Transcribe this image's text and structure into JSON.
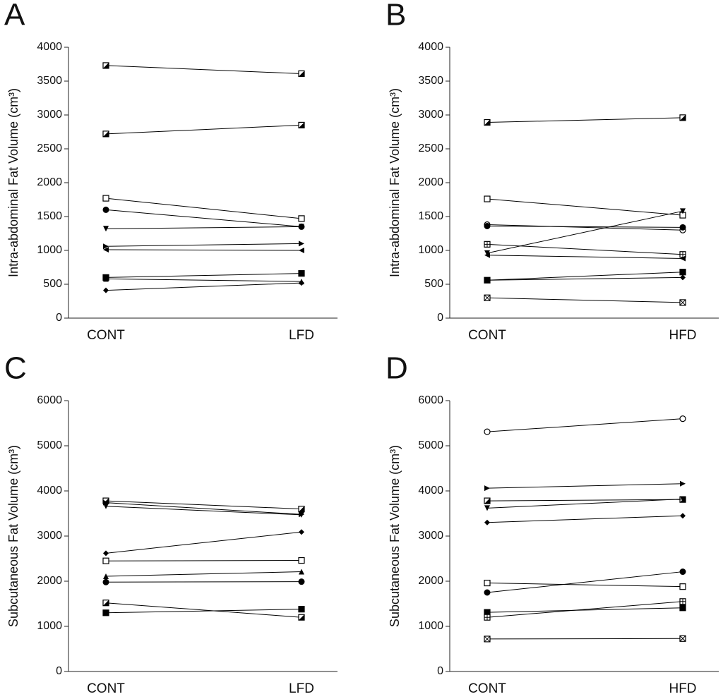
{
  "chart_data": [
    {
      "type": "line",
      "panel": "A",
      "y_label": "Intra-abdominal Fat Volume (cm³)",
      "categories": [
        "CONT",
        "LFD"
      ],
      "ylim": [
        0,
        4000
      ],
      "yticks": [
        0,
        500,
        1000,
        1500,
        2000,
        2500,
        3000,
        3500,
        4000
      ],
      "series": [
        {
          "color": "#000",
          "marker": "square-half",
          "values": [
            3730,
            3610
          ]
        },
        {
          "color": "#000",
          "marker": "square-half",
          "values": [
            2720,
            2850
          ]
        },
        {
          "color": "#000",
          "marker": "square-open",
          "values": [
            1770,
            1470
          ]
        },
        {
          "color": "#000",
          "marker": "circle",
          "values": [
            1600,
            1350
          ]
        },
        {
          "color": "#000",
          "marker": "tri-down",
          "values": [
            1320,
            1350
          ]
        },
        {
          "color": "#000",
          "marker": "tri-right",
          "values": [
            1060,
            1100
          ]
        },
        {
          "color": "#000",
          "marker": "tri-left",
          "values": [
            1010,
            1000
          ]
        },
        {
          "color": "#000",
          "marker": "square-filled",
          "values": [
            600,
            660
          ]
        },
        {
          "color": "#000",
          "marker": "tri-up",
          "values": [
            580,
            540
          ]
        },
        {
          "color": "#000",
          "marker": "diamond",
          "values": [
            410,
            520
          ]
        }
      ]
    },
    {
      "type": "line",
      "panel": "B",
      "y_label": "Intra-abdominal Fat Volume (cm³)",
      "categories": [
        "CONT",
        "HFD"
      ],
      "ylim": [
        0,
        4000
      ],
      "yticks": [
        0,
        500,
        1000,
        1500,
        2000,
        2500,
        3000,
        3500,
        4000
      ],
      "series": [
        {
          "color": "#000",
          "marker": "square-half",
          "values": [
            2890,
            2960
          ]
        },
        {
          "color": "#000",
          "marker": "square-open",
          "values": [
            1760,
            1520
          ]
        },
        {
          "color": "#000",
          "marker": "circle-open",
          "values": [
            1380,
            1300
          ]
        },
        {
          "color": "#000",
          "marker": "circle",
          "values": [
            1360,
            1340
          ]
        },
        {
          "color": "#000",
          "marker": "tri-down",
          "values": [
            960,
            1580
          ]
        },
        {
          "color": "#000",
          "marker": "square-grid",
          "values": [
            1090,
            940
          ]
        },
        {
          "color": "#000",
          "marker": "tri-left",
          "values": [
            930,
            880
          ]
        },
        {
          "color": "#000",
          "marker": "square-filled",
          "values": [
            560,
            680
          ]
        },
        {
          "color": "#000",
          "marker": "diamond",
          "values": [
            560,
            600
          ]
        },
        {
          "color": "#000",
          "marker": "square-x",
          "values": [
            300,
            230
          ]
        }
      ]
    },
    {
      "type": "line",
      "panel": "C",
      "y_label": "Subcutaneous Fat Volume (cm³)",
      "categories": [
        "CONT",
        "LFD"
      ],
      "ylim": [
        0,
        6000
      ],
      "yticks": [
        0,
        1000,
        2000,
        3000,
        4000,
        5000,
        6000
      ],
      "series": [
        {
          "color": "#000",
          "marker": "square-half",
          "values": [
            3780,
            3600
          ]
        },
        {
          "color": "#000",
          "marker": "tri-right",
          "values": [
            3740,
            3480
          ]
        },
        {
          "color": "#000",
          "marker": "tri-down",
          "values": [
            3660,
            3470
          ]
        },
        {
          "color": "#000",
          "marker": "diamond",
          "values": [
            2620,
            3090
          ]
        },
        {
          "color": "#000",
          "marker": "square-open",
          "values": [
            2450,
            2460
          ]
        },
        {
          "color": "#000",
          "marker": "tri-up",
          "values": [
            2110,
            2210
          ]
        },
        {
          "color": "#000",
          "marker": "circle",
          "values": [
            1980,
            1990
          ]
        },
        {
          "color": "#000",
          "marker": "square-half",
          "values": [
            1520,
            1200
          ]
        },
        {
          "color": "#000",
          "marker": "square-filled",
          "values": [
            1300,
            1380
          ]
        }
      ]
    },
    {
      "type": "line",
      "panel": "D",
      "y_label": "Subcutaneous Fat Volume (cm³)",
      "categories": [
        "CONT",
        "HFD"
      ],
      "ylim": [
        0,
        6000
      ],
      "yticks": [
        0,
        1000,
        2000,
        3000,
        4000,
        5000,
        6000
      ],
      "series": [
        {
          "color": "#000",
          "marker": "circle-open",
          "values": [
            5310,
            5600
          ]
        },
        {
          "color": "#000",
          "marker": "tri-right",
          "values": [
            4060,
            4160
          ]
        },
        {
          "color": "#000",
          "marker": "square-half",
          "values": [
            3780,
            3810
          ]
        },
        {
          "color": "#000",
          "marker": "tri-down",
          "values": [
            3620,
            3820
          ]
        },
        {
          "color": "#000",
          "marker": "diamond",
          "values": [
            3300,
            3450
          ]
        },
        {
          "color": "#000",
          "marker": "square-open",
          "values": [
            1960,
            1880
          ]
        },
        {
          "color": "#000",
          "marker": "circle",
          "values": [
            1750,
            2210
          ]
        },
        {
          "color": "#000",
          "marker": "square-filled",
          "values": [
            1310,
            1410
          ]
        },
        {
          "color": "#000",
          "marker": "square-grid",
          "values": [
            1200,
            1550
          ]
        },
        {
          "color": "#000",
          "marker": "square-x",
          "values": [
            720,
            730
          ]
        }
      ]
    }
  ]
}
